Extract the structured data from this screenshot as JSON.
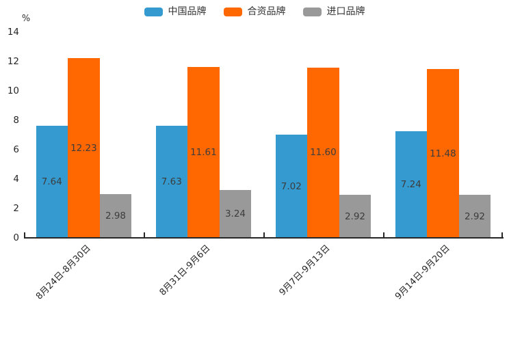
{
  "chart_data": {
    "type": "bar",
    "title": "",
    "unit_label": "%",
    "legend_position": "top",
    "grid": false,
    "categories": [
      "8月24日-8月30日",
      "8月31日-9月6日",
      "9月7日-9月13日",
      "9月14日-9月20日"
    ],
    "series": [
      {
        "name": "中国品牌",
        "color": "#349ACF",
        "values": [
          7.64,
          7.63,
          7.02,
          7.24
        ]
      },
      {
        "name": "合资品牌",
        "color": "#FF6700",
        "values": [
          12.23,
          11.61,
          11.6,
          11.48
        ]
      },
      {
        "name": "进口品牌",
        "color": "#999999",
        "values": [
          2.98,
          3.24,
          2.92,
          2.92
        ]
      }
    ],
    "value_labels": [
      [
        "7.64",
        "7.63",
        "7.02",
        "7.24"
      ],
      [
        "12.23",
        "11.61",
        "11.60",
        "11.48"
      ],
      [
        "2.98",
        "3.24",
        "2.92",
        "2.92"
      ]
    ],
    "y_axis": {
      "min": 0,
      "max": 14,
      "tick_step": 2,
      "ticks": [
        "0",
        "2",
        "4",
        "6",
        "8",
        "10",
        "12",
        "14"
      ]
    }
  }
}
